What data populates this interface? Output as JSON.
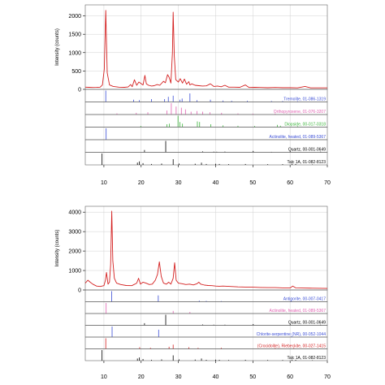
{
  "chart_data": [
    {
      "type": "line",
      "ylabel": "Intensity (counts)",
      "xlim": [
        5,
        70
      ],
      "ylim": [
        0,
        2300
      ],
      "y_ticks": [
        0,
        500,
        1000,
        1500,
        2000
      ],
      "x_ticks": [
        10,
        20,
        30,
        40,
        50,
        60,
        70
      ],
      "grid": true,
      "series": [
        {
          "color": "#d42020",
          "x": [
            5,
            6,
            7,
            8,
            9,
            9.6,
            10.1,
            10.5,
            10.9,
            11.5,
            12.5,
            14,
            15.5,
            16.5,
            17.2,
            17.6,
            18.2,
            18.8,
            19.4,
            20.5,
            21.0,
            21.4,
            22.0,
            22.8,
            23.5,
            24.3,
            25.0,
            26.0,
            26.5,
            27.1,
            27.5,
            28.0,
            28.4,
            28.6,
            28.9,
            29.3,
            30.0,
            30.5,
            31.1,
            31.6,
            32.2,
            32.8,
            33.1,
            33.6,
            34.5,
            35.5,
            36.5,
            37.5,
            38.6,
            39.5,
            40.5,
            41.5,
            42.5,
            43.5,
            45,
            46.5,
            48,
            49,
            50.5,
            52,
            54,
            56,
            58,
            60,
            62,
            64,
            65.5,
            66.5,
            68,
            70
          ],
          "y": [
            60,
            55,
            50,
            52,
            60,
            120,
            550,
            2150,
            450,
            120,
            80,
            60,
            55,
            65,
            130,
            70,
            260,
            110,
            200,
            120,
            380,
            150,
            110,
            90,
            100,
            130,
            110,
            220,
            180,
            400,
            330,
            170,
            1000,
            2100,
            900,
            260,
            200,
            290,
            170,
            280,
            140,
            210,
            120,
            150,
            110,
            100,
            90,
            95,
            150,
            80,
            90,
            70,
            110,
            60,
            60,
            55,
            120,
            50,
            55,
            50,
            45,
            50,
            45,
            45,
            40,
            80,
            40,
            40,
            40,
            40
          ]
        }
      ],
      "references": [
        {
          "label": "Tremolite, 01-086-1319",
          "color": "#3a4dd6",
          "peaks": [
            [
              10.5,
              100
            ],
            [
              18.0,
              20
            ],
            [
              19.5,
              15
            ],
            [
              22.8,
              25
            ],
            [
              26.3,
              25
            ],
            [
              27.3,
              45
            ],
            [
              28.6,
              55
            ],
            [
              30.4,
              20
            ],
            [
              31.0,
              30
            ],
            [
              33.1,
              75
            ],
            [
              35.0,
              15
            ],
            [
              38.6,
              20
            ],
            [
              42.0,
              12
            ],
            [
              44.3,
              10
            ],
            [
              48.5,
              10
            ],
            [
              55.0,
              8
            ],
            [
              58.0,
              8
            ],
            [
              62.0,
              6
            ]
          ]
        },
        {
          "label": "Orthopyroxene, 01-076-3207",
          "color": "#e060b0",
          "peaks": [
            [
              13.5,
              10
            ],
            [
              18.7,
              15
            ],
            [
              21.8,
              20
            ],
            [
              26.9,
              35
            ],
            [
              28.1,
              100
            ],
            [
              29.4,
              70
            ],
            [
              30.8,
              60
            ],
            [
              31.9,
              45
            ],
            [
              33.4,
              25
            ],
            [
              35.0,
              30
            ],
            [
              36.5,
              25
            ],
            [
              38.5,
              20
            ],
            [
              41.6,
              15
            ],
            [
              46.0,
              10
            ],
            [
              50.0,
              8
            ],
            [
              56.0,
              10
            ],
            [
              60.0,
              6
            ]
          ]
        },
        {
          "label": "Diopside, 00-017-0318",
          "color": "#3ab43a",
          "peaks": [
            [
              19.9,
              10
            ],
            [
              26.9,
              25
            ],
            [
              27.6,
              30
            ],
            [
              29.9,
              100
            ],
            [
              30.4,
              45
            ],
            [
              31.1,
              30
            ],
            [
              35.1,
              50
            ],
            [
              35.7,
              45
            ],
            [
              38.7,
              25
            ],
            [
              42.0,
              15
            ],
            [
              46.0,
              12
            ],
            [
              50.5,
              10
            ],
            [
              56.6,
              20
            ],
            [
              57.4,
              12
            ],
            [
              62.0,
              8
            ]
          ]
        },
        {
          "label": "Actinolite, heated, 01-089-5367",
          "color": "#3a4dd6",
          "peaks": [
            [
              10.6,
              100
            ]
          ]
        },
        {
          "label": "Quartz, 00-001-0649",
          "color": "#000000",
          "peaks": [
            [
              20.9,
              20
            ],
            [
              26.6,
              100
            ],
            [
              36.5,
              8
            ],
            [
              39.5,
              6
            ],
            [
              40.3,
              5
            ],
            [
              42.5,
              6
            ],
            [
              50.1,
              12
            ],
            [
              55.0,
              4
            ],
            [
              60.0,
              8
            ],
            [
              68.2,
              6
            ]
          ]
        },
        {
          "label": "Talc 1A, 01-082-8123",
          "color": "#000000",
          "peaks": [
            [
              9.5,
              100
            ],
            [
              19.0,
              20
            ],
            [
              19.5,
              30
            ],
            [
              20.5,
              15
            ],
            [
              22.8,
              8
            ],
            [
              25.5,
              12
            ],
            [
              28.6,
              50
            ],
            [
              30.2,
              12
            ],
            [
              34.5,
              10
            ],
            [
              36.2,
              20
            ],
            [
              37.5,
              8
            ],
            [
              40.0,
              10
            ],
            [
              41.0,
              8
            ],
            [
              43.5,
              6
            ],
            [
              48.0,
              8
            ],
            [
              54.0,
              6
            ],
            [
              58.0,
              6
            ],
            [
              60.5,
              10
            ],
            [
              61.5,
              8
            ],
            [
              66.0,
              4
            ]
          ]
        }
      ]
    },
    {
      "type": "line",
      "ylabel": "Intensity (counts)",
      "xlim": [
        5,
        70
      ],
      "ylim": [
        0,
        4300
      ],
      "y_ticks": [
        0,
        1000,
        2000,
        3000,
        4000
      ],
      "x_ticks": [
        10,
        20,
        30,
        40,
        50,
        60,
        70
      ],
      "grid": true,
      "series": [
        {
          "color": "#d42020",
          "x": [
            5,
            5.7,
            6.3,
            7.0,
            8.0,
            9.0,
            10.0,
            10.4,
            10.7,
            11.1,
            11.5,
            11.8,
            12.1,
            12.4,
            12.8,
            13.4,
            14.5,
            16,
            17.5,
            18.8,
            19.3,
            19.8,
            20.5,
            21.3,
            22.2,
            23.0,
            23.8,
            24.4,
            24.9,
            25.4,
            26.0,
            26.8,
            27.4,
            28.0,
            28.6,
            29.0,
            29.4,
            30.0,
            31.0,
            32.0,
            33.0,
            34.0,
            35.0,
            35.5,
            36.0,
            37.0,
            38.0,
            39.0,
            40.0,
            41.0,
            42.0,
            44.0,
            46.0,
            48.0,
            50.0,
            52.0,
            54.0,
            56.0,
            58.0,
            60.0,
            60.7,
            61.5,
            63.0,
            66.0,
            70.0
          ],
          "y": [
            350,
            500,
            400,
            300,
            200,
            180,
            220,
            500,
            900,
            300,
            400,
            1300,
            4050,
            1500,
            600,
            350,
            280,
            230,
            220,
            350,
            600,
            300,
            400,
            350,
            280,
            300,
            500,
            800,
            1450,
            700,
            350,
            300,
            400,
            300,
            600,
            1400,
            500,
            350,
            320,
            280,
            300,
            260,
            320,
            400,
            300,
            250,
            230,
            220,
            200,
            190,
            200,
            180,
            160,
            150,
            140,
            130,
            120,
            120,
            110,
            100,
            200,
            110,
            100,
            90,
            80
          ]
        }
      ],
      "references": [
        {
          "label": "Antigorite, 00-007-0417",
          "color": "#3a4dd6",
          "peaks": [
            [
              12.1,
              100
            ],
            [
              24.6,
              60
            ],
            [
              35.6,
              10
            ],
            [
              37.5,
              8
            ],
            [
              41.5,
              6
            ],
            [
              60.2,
              10
            ]
          ]
        },
        {
          "label": "Actinolite, heated, 01-089-5367",
          "color": "#e060b0",
          "peaks": [
            [
              10.6,
              100
            ],
            [
              28.6,
              25
            ],
            [
              33.1,
              15
            ]
          ]
        },
        {
          "label": "Quartz, 00-001-0649",
          "color": "#000000",
          "peaks": [
            [
              20.9,
              20
            ],
            [
              26.6,
              100
            ],
            [
              36.5,
              8
            ],
            [
              39.5,
              6
            ],
            [
              42.5,
              6
            ],
            [
              50.1,
              12
            ],
            [
              60.0,
              8
            ],
            [
              68.2,
              6
            ]
          ]
        },
        {
          "label": "Chlorite-serpentine (NR), 00-052-1044",
          "color": "#3a4dd6",
          "peaks": [
            [
              12.2,
              100
            ],
            [
              24.7,
              70
            ],
            [
              60.4,
              10
            ]
          ]
        },
        {
          "label": "(Crocidolite), Riebeckite, 00-027-1415",
          "color": "#d42020",
          "peaks": [
            [
              10.5,
              100
            ],
            [
              19.6,
              15
            ],
            [
              22.5,
              10
            ],
            [
              27.5,
              20
            ],
            [
              28.6,
              40
            ],
            [
              32.8,
              15
            ],
            [
              35.3,
              10
            ],
            [
              41.5,
              10
            ],
            [
              56.0,
              8
            ],
            [
              61.0,
              8
            ]
          ]
        },
        {
          "label": "Talc 1A, 01-082-8123",
          "color": "#000000",
          "peaks": [
            [
              9.5,
              100
            ],
            [
              19.0,
              20
            ],
            [
              19.5,
              30
            ],
            [
              20.5,
              15
            ],
            [
              22.8,
              8
            ],
            [
              25.5,
              12
            ],
            [
              28.6,
              50
            ],
            [
              30.2,
              12
            ],
            [
              34.5,
              10
            ],
            [
              36.2,
              20
            ],
            [
              37.5,
              8
            ],
            [
              40.0,
              10
            ],
            [
              41.0,
              8
            ],
            [
              43.5,
              6
            ],
            [
              48.0,
              8
            ],
            [
              54.0,
              6
            ],
            [
              58.0,
              6
            ],
            [
              60.5,
              10
            ],
            [
              61.5,
              8
            ],
            [
              66.0,
              4
            ]
          ]
        }
      ]
    }
  ]
}
